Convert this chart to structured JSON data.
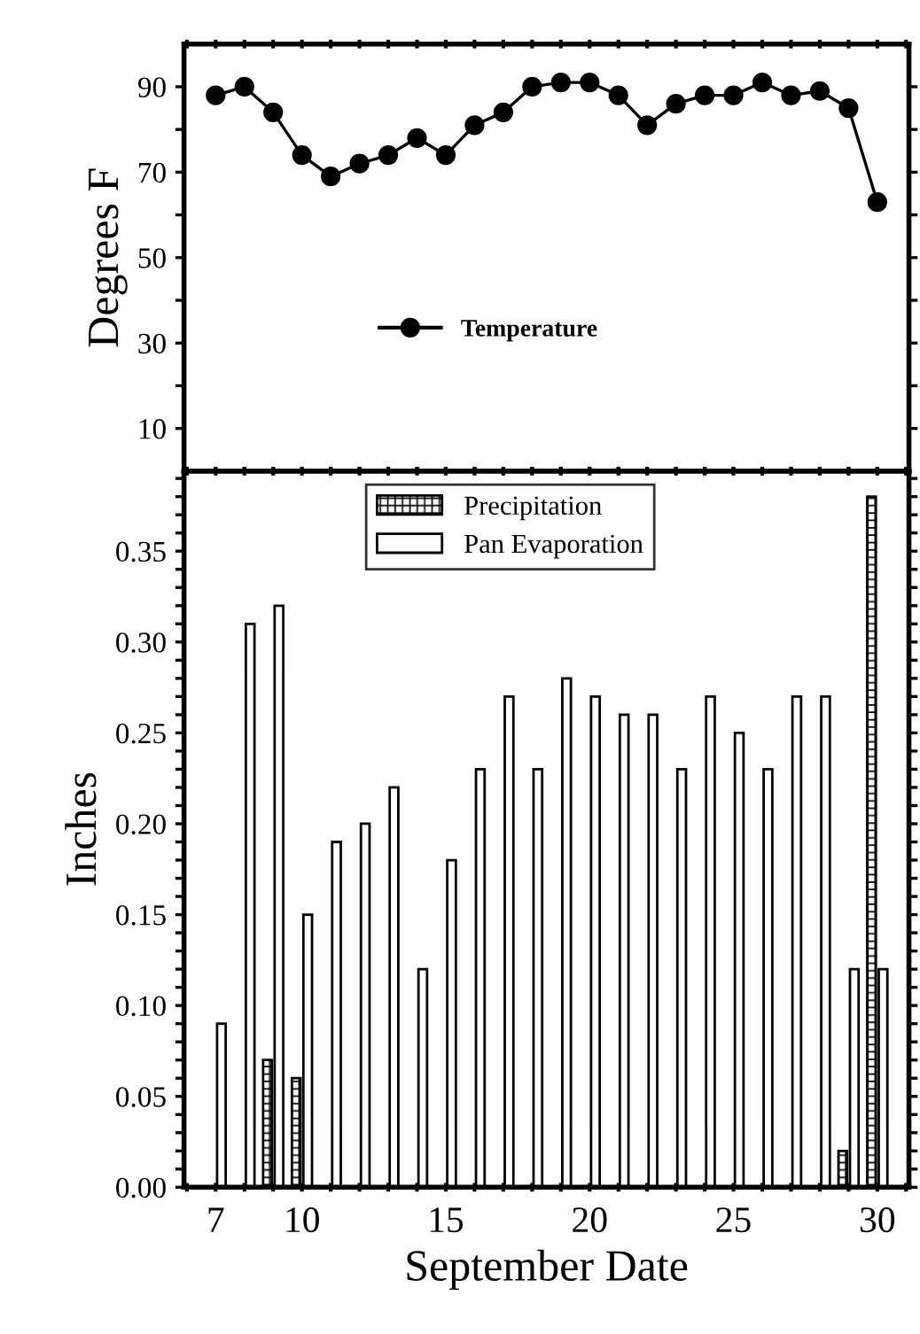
{
  "chart_data": [
    {
      "type": "line",
      "ylabel": "Degrees F",
      "x": [
        7,
        8,
        9,
        10,
        11,
        12,
        13,
        14,
        15,
        16,
        17,
        18,
        19,
        20,
        21,
        22,
        23,
        24,
        25,
        26,
        27,
        28,
        29,
        30
      ],
      "series": [
        {
          "name": "Temperature",
          "color": "#000000",
          "values": [
            88,
            90,
            84,
            74,
            69,
            72,
            74,
            78,
            74,
            81,
            84,
            90,
            91,
            91,
            88,
            81,
            86,
            88,
            88,
            91,
            88,
            89,
            85,
            63
          ]
        }
      ],
      "xlim": [
        5.9,
        31.1
      ],
      "ylim": [
        0,
        100
      ],
      "xticks": [
        {
          "value": 6,
          "label": null
        },
        {
          "value": 7,
          "label": null
        },
        {
          "value": 8,
          "label": null
        },
        {
          "value": 9,
          "label": null
        },
        {
          "value": 10,
          "label": null
        },
        {
          "value": 11,
          "label": null
        },
        {
          "value": 12,
          "label": null
        },
        {
          "value": 13,
          "label": null
        },
        {
          "value": 14,
          "label": null
        },
        {
          "value": 15,
          "label": null
        },
        {
          "value": 16,
          "label": null
        },
        {
          "value": 17,
          "label": null
        },
        {
          "value": 18,
          "label": null
        },
        {
          "value": 19,
          "label": null
        },
        {
          "value": 20,
          "label": null
        },
        {
          "value": 21,
          "label": null
        },
        {
          "value": 22,
          "label": null
        },
        {
          "value": 23,
          "label": null
        },
        {
          "value": 24,
          "label": null
        },
        {
          "value": 25,
          "label": null
        },
        {
          "value": 26,
          "label": null
        },
        {
          "value": 27,
          "label": null
        },
        {
          "value": 28,
          "label": null
        },
        {
          "value": 29,
          "label": null
        },
        {
          "value": 30,
          "label": null
        },
        {
          "value": 31,
          "label": null
        }
      ],
      "yticks": [
        10,
        {
          "value": 20,
          "label": null
        },
        30,
        {
          "value": 40,
          "label": null
        },
        50,
        {
          "value": 60,
          "label": null
        },
        70,
        {
          "value": 80,
          "label": null
        },
        90
      ],
      "tick_labels": "y",
      "marker": "circle",
      "line_style": "solid",
      "legend": "center",
      "grid": false
    },
    {
      "type": "bar",
      "xlabel": "September Date",
      "ylabel": "Inches",
      "series": [
        {
          "name": "Precipitation",
          "color": "#000000",
          "x": [
            8.8,
            9.8,
            28.8,
            29.8
          ],
          "values": [
            0.07,
            0.06,
            0.02,
            0.38
          ]
        },
        {
          "name": "Pan Evaporation",
          "color": "#ffffff",
          "x": [
            7.2,
            8.2,
            9.2,
            10.2,
            11.2,
            12.2,
            13.2,
            14.2,
            15.2,
            16.2,
            17.2,
            18.2,
            19.2,
            20.2,
            21.2,
            22.2,
            23.2,
            24.2,
            25.2,
            26.2,
            27.2,
            28.2,
            29.2,
            30.2
          ],
          "values": [
            0.09,
            0.31,
            0.32,
            0.15,
            0.19,
            0.2,
            0.22,
            0.12,
            0.18,
            0.23,
            0.27,
            0.23,
            0.28,
            0.27,
            0.26,
            0.26,
            0.23,
            0.27,
            0.25,
            0.23,
            0.27,
            0.27,
            0.12,
            0.12
          ]
        }
      ],
      "xlim": [
        5.9,
        31.1
      ],
      "ylim": [
        0,
        0.394
      ],
      "xticks": [
        {
          "value": 6,
          "label": null
        },
        7,
        {
          "value": 8,
          "label": null
        },
        {
          "value": 9,
          "label": null
        },
        10,
        {
          "value": 11,
          "label": null
        },
        {
          "value": 12,
          "label": null
        },
        {
          "value": 13,
          "label": null
        },
        {
          "value": 14,
          "label": null
        },
        15,
        {
          "value": 16,
          "label": null
        },
        {
          "value": 17,
          "label": null
        },
        {
          "value": 18,
          "label": null
        },
        {
          "value": 19,
          "label": null
        },
        20,
        {
          "value": 21,
          "label": null
        },
        {
          "value": 22,
          "label": null
        },
        {
          "value": 23,
          "label": null
        },
        {
          "value": 24,
          "label": null
        },
        25,
        {
          "value": 26,
          "label": null
        },
        {
          "value": 27,
          "label": null
        },
        {
          "value": 28,
          "label": null
        },
        {
          "value": 29,
          "label": null
        },
        30,
        {
          "value": 31,
          "label": null
        }
      ],
      "yticks": [
        {
          "value": 0,
          "label": "0.00"
        },
        {
          "value": 0.01,
          "label": null
        },
        {
          "value": 0.02,
          "label": null
        },
        {
          "value": 0.03,
          "label": null
        },
        {
          "value": 0.04,
          "label": null
        },
        {
          "value": 0.05,
          "label": "0.05"
        },
        {
          "value": 0.06,
          "label": null
        },
        {
          "value": 0.07,
          "label": null
        },
        {
          "value": 0.08,
          "label": null
        },
        {
          "value": 0.09,
          "label": null
        },
        {
          "value": 0.1,
          "label": "0.10"
        },
        {
          "value": 0.11,
          "label": null
        },
        {
          "value": 0.12,
          "label": null
        },
        {
          "value": 0.13,
          "label": null
        },
        {
          "value": 0.14,
          "label": null
        },
        {
          "value": 0.15,
          "label": "0.15"
        },
        {
          "value": 0.16,
          "label": null
        },
        {
          "value": 0.17,
          "label": null
        },
        {
          "value": 0.18,
          "label": null
        },
        {
          "value": 0.19,
          "label": null
        },
        {
          "value": 0.2,
          "label": "0.20"
        },
        {
          "value": 0.21,
          "label": null
        },
        {
          "value": 0.22,
          "label": null
        },
        {
          "value": 0.23,
          "label": null
        },
        {
          "value": 0.24,
          "label": null
        },
        {
          "value": 0.25,
          "label": "0.25"
        },
        {
          "value": 0.26,
          "label": null
        },
        {
          "value": 0.27,
          "label": null
        },
        {
          "value": 0.28,
          "label": null
        },
        {
          "value": 0.29,
          "label": null
        },
        {
          "value": 0.3,
          "label": "0.30"
        },
        {
          "value": 0.31,
          "label": null
        },
        {
          "value": 0.32,
          "label": null
        },
        {
          "value": 0.33,
          "label": null
        },
        {
          "value": 0.34,
          "label": null
        },
        {
          "value": 0.35,
          "label": "0.35"
        },
        {
          "value": 0.36,
          "label": null
        },
        {
          "value": 0.37,
          "label": null
        },
        {
          "value": 0.38,
          "label": null
        },
        {
          "value": 0.39,
          "label": null
        }
      ],
      "legend": "top",
      "grid": false
    }
  ]
}
